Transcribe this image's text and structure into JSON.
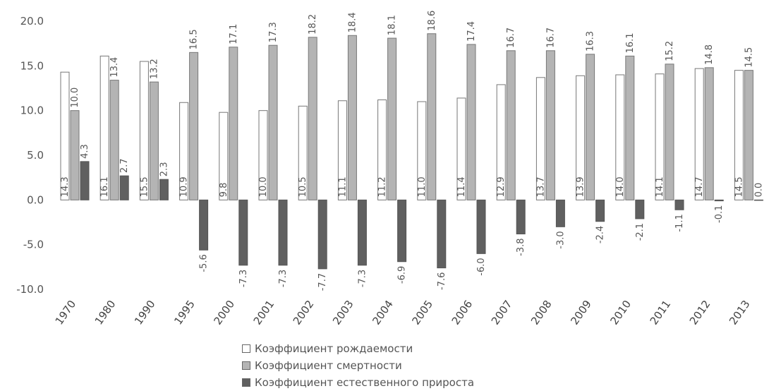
{
  "chart_data": {
    "type": "bar",
    "categories": [
      "1970",
      "1980",
      "1990",
      "1995",
      "2000",
      "2001",
      "2002",
      "2003",
      "2004",
      "2005",
      "2006",
      "2007",
      "2008",
      "2009",
      "2010",
      "2011",
      "2012",
      "2013"
    ],
    "series": [
      {
        "name": "Коэффициент рождаемости",
        "color": "#ffffff",
        "values": [
          14.3,
          16.1,
          15.5,
          10.9,
          9.8,
          10.0,
          10.5,
          11.1,
          11.2,
          11.0,
          11.4,
          12.9,
          13.7,
          13.9,
          14.0,
          14.1,
          14.7,
          14.5
        ]
      },
      {
        "name": "Коэффициент смертности",
        "color": "#b4b4b4",
        "values": [
          10.0,
          13.4,
          13.2,
          16.5,
          17.1,
          17.3,
          18.2,
          18.4,
          18.1,
          18.6,
          17.4,
          16.7,
          16.7,
          16.3,
          16.1,
          15.2,
          14.8,
          14.5
        ]
      },
      {
        "name": "Коэффициент естественного прироста",
        "color": "#606060",
        "values": [
          4.3,
          2.7,
          2.3,
          -5.6,
          -7.3,
          -7.3,
          -7.7,
          -7.3,
          -6.9,
          -7.6,
          -6.0,
          -3.8,
          -3.0,
          -2.4,
          -2.1,
          -1.1,
          -0.1,
          0.0
        ]
      }
    ],
    "y_ticks": [
      "20.0",
      "15.0",
      "10.0",
      "5.0",
      "0.0",
      "-5.0",
      "-10.0"
    ],
    "ylim": [
      -10,
      20
    ],
    "grid": false,
    "legend_position": "bottom"
  }
}
